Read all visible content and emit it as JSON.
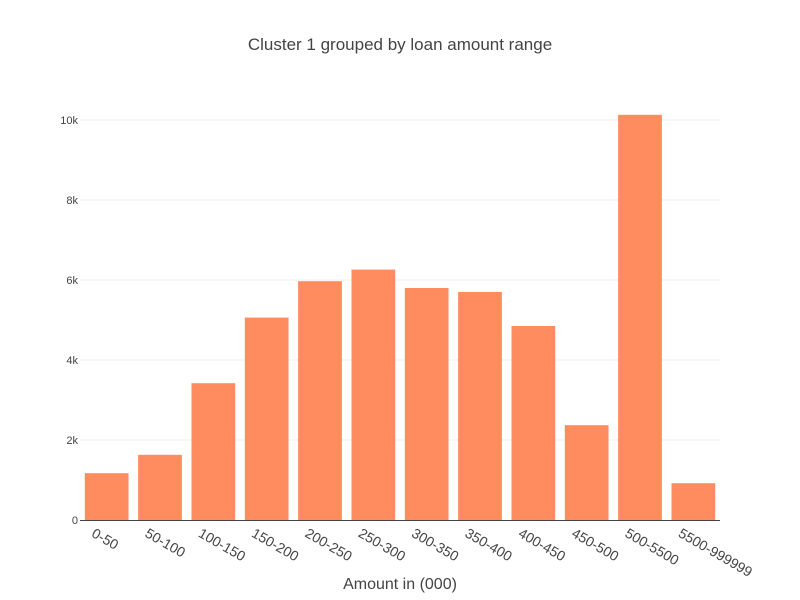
{
  "chart_data": {
    "type": "bar",
    "title": "Cluster 1  grouped by loan amount range",
    "xlabel": "Amount in (000)",
    "ylabel": "",
    "categories": [
      "0-50",
      "50-100",
      "100-150",
      "150-200",
      "200-250",
      "250-300",
      "300-350",
      "350-400",
      "400-450",
      "450-500",
      "500-5500",
      "5500-999999"
    ],
    "values": [
      1170,
      1630,
      3420,
      5060,
      5970,
      6260,
      5800,
      5700,
      4850,
      2370,
      10130,
      920
    ],
    "ylim": [
      0,
      11000
    ],
    "yticks": [
      0,
      2000,
      4000,
      6000,
      8000,
      10000
    ],
    "ytick_labels": [
      "0",
      "2k",
      "4k",
      "6k",
      "8k",
      "10k"
    ],
    "grid": true,
    "legend": "none",
    "colors": {
      "bar": "#ff8c5f",
      "grid": "#eeeeee",
      "axis": "#444444",
      "text": "#444444"
    }
  }
}
